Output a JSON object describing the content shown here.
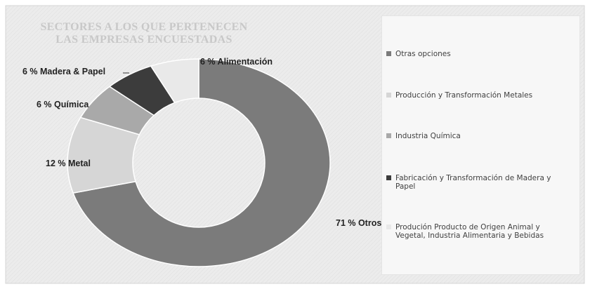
{
  "chart_data": {
    "type": "pie",
    "title": [
      "SECTORES A LOS QUE PERTENECEN",
      "LAS EMPRESAS ENCUESTADAS"
    ],
    "categories": [
      "Otras opciones",
      "Producción y Transformación Metales",
      "Industria Química",
      "Fabricación y Transformación de Madera y Papel",
      "Produción Producto de Origen Animal y Vegetal, Industria Alimentaria y Bebidas"
    ],
    "values": [
      71,
      12,
      6,
      6,
      6
    ],
    "value_labels": [
      "71 % Otros",
      "12 % Metal",
      "6 % Química",
      "6 % Madera & Papel",
      "6 % Alimentación"
    ],
    "colors": [
      "#7b7b7b",
      "#d6d6d6",
      "#a9a9a9",
      "#3c3c3c",
      "#e9e9e9"
    ],
    "legend": "right"
  }
}
